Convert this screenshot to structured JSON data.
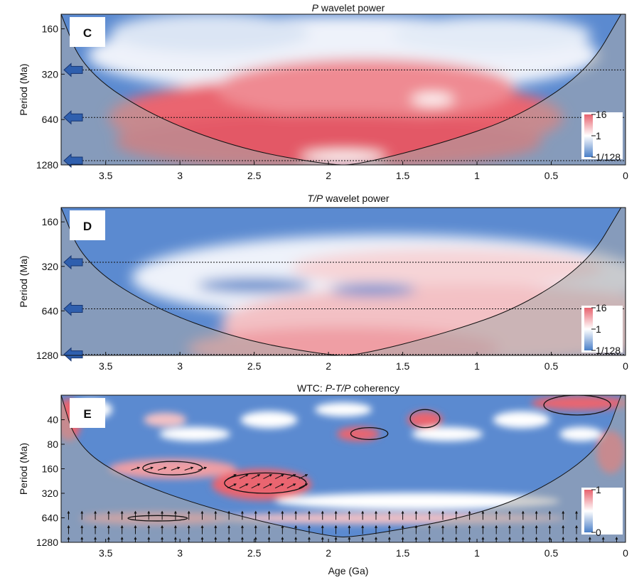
{
  "chart_data": [
    {
      "type": "heatmap",
      "panel": "C",
      "title_italic": "P",
      "title_rest": " wavelet power",
      "ylabel": "Period (Ma)",
      "xlim": [
        3.8,
        0
      ],
      "ylim": [
        128,
        1280
      ],
      "y_scale": "log2",
      "xticks": [
        "3.5",
        "3",
        "2.5",
        "2",
        "1.5",
        "1",
        "0.5",
        "0"
      ],
      "xtick_values": [
        3.5,
        3,
        2.5,
        2,
        1.5,
        1,
        0.5,
        0
      ],
      "yticks": [
        "160",
        "320",
        "640",
        "1280"
      ],
      "ytick_values": [
        160,
        320,
        640,
        1280
      ],
      "colorbar": {
        "labels": [
          "16",
          "1",
          "1/128"
        ],
        "values": [
          16,
          1,
          0.0078125
        ],
        "colors": [
          "#e8626e",
          "#ffffff",
          "#4a7fc8"
        ]
      },
      "reference_periods": [
        {
          "period": 300,
          "highlighted": true
        },
        {
          "period": 620,
          "highlighted": true
        },
        {
          "period": 1200,
          "highlighted": true
        }
      ],
      "cone_of_influence": [
        [
          3.8,
          128
        ],
        [
          3.65,
          300
        ],
        [
          3.2,
          600
        ],
        [
          2.6,
          1000
        ],
        [
          2.0,
          1280
        ],
        [
          1.8,
          1280
        ],
        [
          1.2,
          900
        ],
        [
          0.7,
          600
        ],
        [
          0.25,
          300
        ],
        [
          0.03,
          128
        ]
      ],
      "high_power_regions": [
        {
          "x": [
            3.0,
            0.6
          ],
          "period": [
            320,
            1200
          ],
          "level": "high"
        },
        {
          "x": [
            2.5,
            1.0
          ],
          "period": [
            280,
            600
          ],
          "level": "medium"
        }
      ]
    },
    {
      "type": "heatmap",
      "panel": "D",
      "title_italic": "T/P",
      "title_rest": " wavelet power",
      "ylabel": "Period (Ma)",
      "xlim": [
        3.8,
        0
      ],
      "ylim": [
        128,
        1280
      ],
      "y_scale": "log2",
      "xticks": [
        "3.5",
        "3",
        "2.5",
        "2",
        "1.5",
        "1",
        "0.5",
        "0"
      ],
      "xtick_values": [
        3.5,
        3,
        2.5,
        2,
        1.5,
        1,
        0.5,
        0
      ],
      "yticks": [
        "160",
        "320",
        "640",
        "1280"
      ],
      "ytick_values": [
        160,
        320,
        640,
        1280
      ],
      "colorbar": {
        "labels": [
          "16",
          "1",
          "1/128"
        ],
        "values": [
          16,
          1,
          0.0078125
        ],
        "colors": [
          "#e8626e",
          "#ffffff",
          "#4a7fc8"
        ]
      },
      "reference_periods": [
        {
          "period": 300,
          "highlighted": true
        },
        {
          "period": 620,
          "highlighted": true
        },
        {
          "period": 1260,
          "highlighted": true
        }
      ],
      "cone_of_influence": [
        [
          3.8,
          128
        ],
        [
          3.65,
          300
        ],
        [
          3.2,
          600
        ],
        [
          2.6,
          1000
        ],
        [
          2.0,
          1280
        ],
        [
          1.8,
          1280
        ],
        [
          1.2,
          900
        ],
        [
          0.7,
          600
        ],
        [
          0.25,
          300
        ],
        [
          0.03,
          128
        ]
      ],
      "high_power_regions": [
        {
          "x": [
            2.3,
            0.1
          ],
          "period": [
            300,
            1100
          ],
          "level": "medium"
        }
      ]
    },
    {
      "type": "heatmap",
      "panel": "E",
      "title_plain": "WTC: ",
      "title_italic": "P",
      "title_mid": "-",
      "title_italic2": "T/P",
      "title_rest": " coherency",
      "xlabel": "Age (Ga)",
      "ylabel": "Period (Ma)",
      "xlim": [
        3.8,
        0
      ],
      "ylim": [
        20,
        1280
      ],
      "y_scale": "log2",
      "xticks": [
        "3.5",
        "3",
        "2.5",
        "2",
        "1.5",
        "1",
        "0.5",
        "0"
      ],
      "xtick_values": [
        3.5,
        3,
        2.5,
        2,
        1.5,
        1,
        0.5,
        0
      ],
      "yticks": [
        "40",
        "80",
        "160",
        "320",
        "640",
        "1280"
      ],
      "ytick_values": [
        40,
        80,
        160,
        320,
        640,
        1280
      ],
      "colorbar": {
        "labels": [
          "1",
          "0"
        ],
        "values": [
          1,
          0
        ],
        "colors": [
          "#e8626e",
          "#ffffff",
          "#4a7fc8"
        ]
      },
      "cone_of_influence": [
        [
          3.8,
          20
        ],
        [
          3.7,
          80
        ],
        [
          3.4,
          200
        ],
        [
          2.8,
          500
        ],
        [
          2.0,
          1100
        ],
        [
          1.8,
          1100
        ],
        [
          1.0,
          600
        ],
        [
          0.5,
          250
        ],
        [
          0.15,
          80
        ],
        [
          0.03,
          20
        ]
      ],
      "coherent_regions": [
        {
          "x": [
            3.25,
            2.85
          ],
          "period": [
            130,
            190
          ]
        },
        {
          "x": [
            2.7,
            2.15
          ],
          "period": [
            180,
            320
          ]
        },
        {
          "x": [
            3.35,
            2.95
          ],
          "period": [
            600,
            700
          ]
        },
        {
          "x": [
            1.85,
            1.6
          ],
          "period": [
            50,
            70
          ]
        },
        {
          "x": [
            1.45,
            1.25
          ],
          "period": [
            30,
            50
          ]
        },
        {
          "x": [
            0.55,
            0.1
          ],
          "period": [
            20,
            35
          ]
        }
      ]
    }
  ]
}
